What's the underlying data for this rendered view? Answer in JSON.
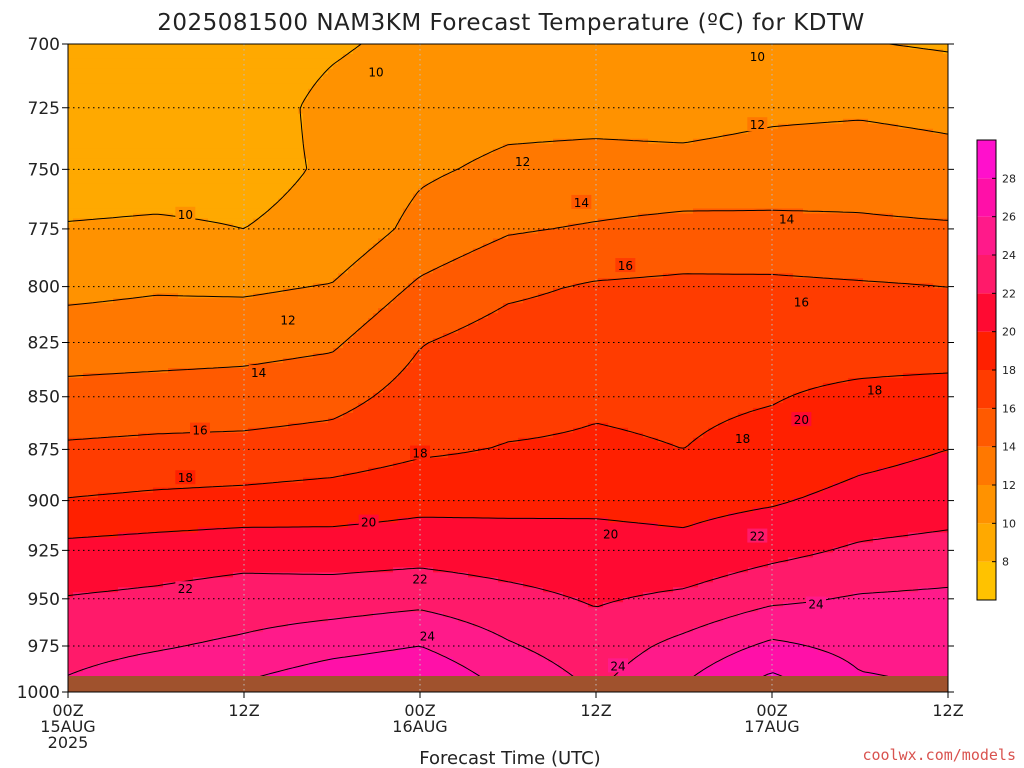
{
  "chart_data": {
    "type": "heatmap",
    "title": "2025081500 NAM3KM Forecast Temperature (ºC) for KDTW",
    "xlabel": "Forecast Time (UTC)",
    "ylabel": "",
    "x_hours": [
      0,
      12,
      24,
      36,
      48,
      60
    ],
    "x_ticks": [
      {
        "hour": 0,
        "lines": [
          "00Z",
          "15AUG",
          "2025"
        ]
      },
      {
        "hour": 12,
        "lines": [
          "12Z"
        ]
      },
      {
        "hour": 24,
        "lines": [
          "00Z",
          "16AUG"
        ]
      },
      {
        "hour": 36,
        "lines": [
          "12Z"
        ]
      },
      {
        "hour": 48,
        "lines": [
          "00Z",
          "17AUG"
        ]
      },
      {
        "hour": 60,
        "lines": [
          "12Z"
        ]
      }
    ],
    "xlim": [
      0,
      60
    ],
    "y_pressure_levels_hpa": [
      700,
      725,
      750,
      775,
      800,
      825,
      850,
      875,
      900,
      925,
      950,
      975,
      1000
    ],
    "ylim": [
      1000,
      700
    ],
    "y_scale": "log-pressure",
    "grid": true,
    "temperature_grid": {
      "hours": [
        0,
        6,
        12,
        18,
        24,
        30,
        36,
        42,
        48,
        54,
        60
      ],
      "rows": [
        {
          "p": 700,
          "t": [
            9.4,
            9.5,
            9.2,
            9.8,
            10.4,
            10.6,
            10.2,
            10.0,
            10.3,
            10.1,
            9.8
          ]
        },
        {
          "p": 725,
          "t": [
            8.9,
            9.2,
            9.3,
            10.4,
            11.0,
            11.4,
            11.4,
            11.2,
            11.6,
            11.7,
            11.4
          ]
        },
        {
          "p": 750,
          "t": [
            9.3,
            9.4,
            9.5,
            10.2,
            11.7,
            12.4,
            12.6,
            12.6,
            12.9,
            13.2,
            12.8
          ]
        },
        {
          "p": 775,
          "t": [
            10.1,
            10.2,
            10.0,
            10.5,
            12.6,
            13.8,
            14.2,
            14.6,
            14.5,
            14.3,
            14.2
          ]
        },
        {
          "p": 800,
          "t": [
            11.5,
            11.8,
            11.7,
            12.1,
            14.3,
            15.6,
            16.2,
            16.4,
            16.4,
            16.2,
            16.0
          ]
        },
        {
          "p": 825,
          "t": [
            13.0,
            13.1,
            13.3,
            13.7,
            15.9,
            16.9,
            17.1,
            17.3,
            17.3,
            17.2,
            17.1
          ]
        },
        {
          "p": 850,
          "t": [
            14.6,
            14.8,
            14.9,
            15.3,
            16.8,
            17.4,
            17.8,
            17.7,
            17.9,
            18.4,
            18.7
          ]
        },
        {
          "p": 875,
          "t": [
            16.3,
            16.5,
            16.6,
            16.9,
            17.7,
            18.1,
            18.2,
            18.0,
            18.5,
            19.4,
            20.0
          ]
        },
        {
          "p": 900,
          "t": [
            18.1,
            18.4,
            18.6,
            18.9,
            19.4,
            19.5,
            19.6,
            19.4,
            19.8,
            20.6,
            21.0
          ]
        },
        {
          "p": 925,
          "t": [
            20.6,
            20.9,
            21.2,
            21.0,
            21.2,
            20.9,
            20.7,
            20.5,
            21.4,
            22.3,
            22.7
          ]
        },
        {
          "p": 950,
          "t": [
            22.1,
            22.4,
            22.9,
            23.0,
            23.4,
            22.6,
            21.8,
            22.4,
            23.6,
            24.2,
            24.4
          ]
        },
        {
          "p": 975,
          "t": [
            23.3,
            23.8,
            24.4,
            25.3,
            26.0,
            24.2,
            22.9,
            24.6,
            26.4,
            25.4,
            25.2
          ]
        },
        {
          "p": 1000,
          "t": [
            24.4,
            25.5,
            26.5,
            27.8,
            28.4,
            25.8,
            23.9,
            26.3,
            29.2,
            26.5,
            26.0
          ]
        }
      ]
    },
    "contour_labels": [
      {
        "v": 10,
        "hour": 21.0,
        "p": 711
      },
      {
        "v": 10,
        "hour": 8.0,
        "p": 769
      },
      {
        "v": 10,
        "hour": 47.0,
        "p": 705
      },
      {
        "v": 12,
        "hour": 15.0,
        "p": 815
      },
      {
        "v": 12,
        "hour": 31.0,
        "p": 747
      },
      {
        "v": 12,
        "hour": 47.0,
        "p": 732
      },
      {
        "v": 14,
        "hour": 13.0,
        "p": 839
      },
      {
        "v": 14,
        "hour": 35.0,
        "p": 764
      },
      {
        "v": 14,
        "hour": 49.0,
        "p": 771
      },
      {
        "v": 16,
        "hour": 9.0,
        "p": 866
      },
      {
        "v": 16,
        "hour": 38.0,
        "p": 791
      },
      {
        "v": 16,
        "hour": 50.0,
        "p": 807
      },
      {
        "v": 18,
        "hour": 8.0,
        "p": 889
      },
      {
        "v": 18,
        "hour": 24.0,
        "p": 877
      },
      {
        "v": 18,
        "hour": 46.0,
        "p": 870
      },
      {
        "v": 18,
        "hour": 55.0,
        "p": 847
      },
      {
        "v": 20,
        "hour": 20.5,
        "p": 911
      },
      {
        "v": 20,
        "hour": 37.0,
        "p": 917
      },
      {
        "v": 20,
        "hour": 50.0,
        "p": 861
      },
      {
        "v": 22,
        "hour": 8.0,
        "p": 945
      },
      {
        "v": 22,
        "hour": 24.0,
        "p": 940
      },
      {
        "v": 22,
        "hour": 47.0,
        "p": 918
      },
      {
        "v": 24,
        "hour": 24.5,
        "p": 970
      },
      {
        "v": 24,
        "hour": 37.5,
        "p": 986
      },
      {
        "v": 24,
        "hour": 51.0,
        "p": 953
      }
    ],
    "ground_color": "#a0522d",
    "colorbar": {
      "ticks": [
        8,
        10,
        12,
        14,
        16,
        18,
        20,
        22,
        24,
        26,
        28
      ],
      "bins": [
        {
          "from": 6,
          "to": 8,
          "color": "#ffc200"
        },
        {
          "from": 8,
          "to": 10,
          "color": "#ffa900"
        },
        {
          "from": 10,
          "to": 12,
          "color": "#ff9200"
        },
        {
          "from": 12,
          "to": 14,
          "color": "#ff7800"
        },
        {
          "from": 14,
          "to": 16,
          "color": "#ff5a00"
        },
        {
          "from": 16,
          "to": 18,
          "color": "#ff3c00"
        },
        {
          "from": 18,
          "to": 20,
          "color": "#ff2000"
        },
        {
          "from": 20,
          "to": 22,
          "color": "#ff0a32"
        },
        {
          "from": 22,
          "to": 24,
          "color": "#ff1a6a"
        },
        {
          "from": 24,
          "to": 26,
          "color": "#ff1a8a"
        },
        {
          "from": 26,
          "to": 28,
          "color": "#ff10a8"
        },
        {
          "from": 28,
          "to": 30,
          "color": "#ff10cc"
        }
      ]
    }
  },
  "credit": "coolwx.com/models"
}
